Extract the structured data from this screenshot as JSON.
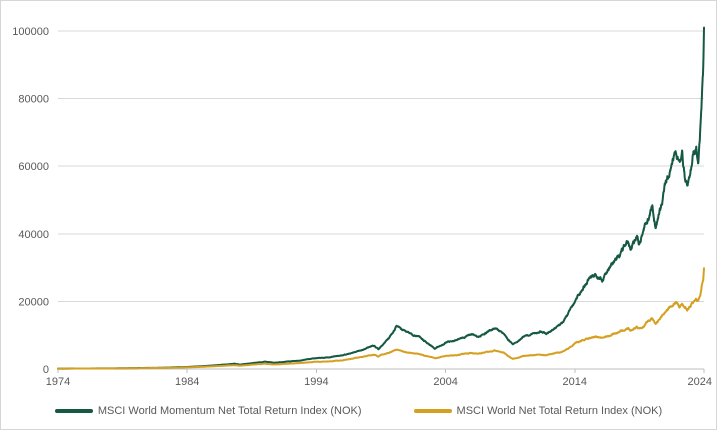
{
  "chart_data": {
    "type": "line",
    "title": "",
    "xlabel": "",
    "ylabel": "",
    "x_range": [
      1974,
      2024
    ],
    "y_range": [
      0,
      100000
    ],
    "x_ticks": [
      "1974",
      "1984",
      "1994",
      "2004",
      "2014",
      "2024"
    ],
    "x_tick_values": [
      1974,
      1984,
      1994,
      2004,
      2014,
      2024
    ],
    "y_ticks": [
      "0",
      "20000",
      "40000",
      "60000",
      "80000",
      "100000"
    ],
    "y_tick_values": [
      0,
      20000,
      40000,
      60000,
      80000,
      100000
    ],
    "grid": "horizontal",
    "legend_position": "bottom-center",
    "colors": {
      "background": "#ffffff",
      "border": "#d6d6d6",
      "grid": "#d9d9d9",
      "axis": "#bfbfbf",
      "labels": "#595959",
      "momentum_line": "#155843",
      "world_line": "#D5A021"
    },
    "series": [
      {
        "name": "MSCI World Momentum Net Total Return Index (NOK)",
        "color": "#155843",
        "points": [
          [
            1974,
            100
          ],
          [
            1975,
            135
          ],
          [
            1976,
            160
          ],
          [
            1977,
            170
          ],
          [
            1978,
            185
          ],
          [
            1979,
            220
          ],
          [
            1980,
            270
          ],
          [
            1981,
            330
          ],
          [
            1982,
            360
          ],
          [
            1983,
            500
          ],
          [
            1984,
            600
          ],
          [
            1985,
            780
          ],
          [
            1986,
            1050
          ],
          [
            1987.7,
            1550
          ],
          [
            1988.1,
            1300
          ],
          [
            1989,
            1750
          ],
          [
            1990,
            2150
          ],
          [
            1990.7,
            1850
          ],
          [
            1992,
            2250
          ],
          [
            1993,
            2650
          ],
          [
            1994,
            3250
          ],
          [
            1995,
            3450
          ],
          [
            1996,
            4050
          ],
          [
            1997,
            5000
          ],
          [
            1998.5,
            7000
          ],
          [
            1998.8,
            5900
          ],
          [
            1999,
            6600
          ],
          [
            2000.2,
            12700
          ],
          [
            2001,
            10800
          ],
          [
            2002,
            9600
          ],
          [
            2003.2,
            6100
          ],
          [
            2004,
            7800
          ],
          [
            2005,
            8800
          ],
          [
            2006,
            10300
          ],
          [
            2006.5,
            9600
          ],
          [
            2007.8,
            12100
          ],
          [
            2008.5,
            10300
          ],
          [
            2009.2,
            7400
          ],
          [
            2010,
            9600
          ],
          [
            2011.3,
            11200
          ],
          [
            2011.8,
            10300
          ],
          [
            2012,
            11000
          ],
          [
            2013,
            13500
          ],
          [
            2014,
            20000
          ],
          [
            2014.5,
            23000
          ],
          [
            2015,
            26000
          ],
          [
            2015.5,
            28000
          ],
          [
            2016.2,
            26500
          ],
          [
            2017,
            31500
          ],
          [
            2017.5,
            34000
          ],
          [
            2018.1,
            38000
          ],
          [
            2018.3,
            35000
          ],
          [
            2018.8,
            39500
          ],
          [
            2019,
            37000
          ],
          [
            2019.5,
            43500
          ],
          [
            2020,
            47500
          ],
          [
            2020.25,
            41500
          ],
          [
            2020.9,
            52000
          ],
          [
            2021,
            54000
          ],
          [
            2021.8,
            66000
          ],
          [
            2022.1,
            60000
          ],
          [
            2022.3,
            63500
          ],
          [
            2022.5,
            56500
          ],
          [
            2022.7,
            54000
          ],
          [
            2023,
            59500
          ],
          [
            2023.2,
            64500
          ],
          [
            2023.4,
            66000
          ],
          [
            2023.55,
            61500
          ],
          [
            2023.7,
            70000
          ],
          [
            2023.8,
            78000
          ],
          [
            2023.88,
            84000
          ],
          [
            2023.94,
            88000
          ],
          [
            2024,
            101000
          ]
        ]
      },
      {
        "name": "MSCI World Net Total Return Index (NOK)",
        "color": "#D5A021",
        "points": [
          [
            1974,
            100
          ],
          [
            1975,
            125
          ],
          [
            1976,
            145
          ],
          [
            1977,
            150
          ],
          [
            1978,
            160
          ],
          [
            1979,
            185
          ],
          [
            1980,
            225
          ],
          [
            1981,
            270
          ],
          [
            1982,
            300
          ],
          [
            1983,
            400
          ],
          [
            1984,
            490
          ],
          [
            1985,
            620
          ],
          [
            1986,
            820
          ],
          [
            1987.7,
            1150
          ],
          [
            1988.1,
            980
          ],
          [
            1989,
            1300
          ],
          [
            1990,
            1550
          ],
          [
            1990.7,
            1350
          ],
          [
            1992,
            1600
          ],
          [
            1993,
            1850
          ],
          [
            1994,
            2150
          ],
          [
            1995,
            2250
          ],
          [
            1996,
            2600
          ],
          [
            1997,
            3200
          ],
          [
            1998.5,
            4300
          ],
          [
            1998.8,
            3700
          ],
          [
            1999,
            4100
          ],
          [
            2000.2,
            5600
          ],
          [
            2001,
            4900
          ],
          [
            2002,
            4400
          ],
          [
            2003.2,
            3200
          ],
          [
            2004,
            3900
          ],
          [
            2005,
            4200
          ],
          [
            2006,
            4800
          ],
          [
            2006.5,
            4500
          ],
          [
            2007.8,
            5400
          ],
          [
            2008.5,
            4800
          ],
          [
            2009.2,
            3000
          ],
          [
            2010,
            3800
          ],
          [
            2011.3,
            4300
          ],
          [
            2011.8,
            4000
          ],
          [
            2012,
            4300
          ],
          [
            2013,
            5100
          ],
          [
            2014,
            7500
          ],
          [
            2014.5,
            8300
          ],
          [
            2015,
            9000
          ],
          [
            2015.5,
            9500
          ],
          [
            2016.2,
            9000
          ],
          [
            2017,
            10500
          ],
          [
            2017.5,
            11200
          ],
          [
            2018.1,
            12000
          ],
          [
            2018.3,
            11400
          ],
          [
            2018.8,
            12500
          ],
          [
            2019,
            11800
          ],
          [
            2019.5,
            13500
          ],
          [
            2020,
            14800
          ],
          [
            2020.25,
            13200
          ],
          [
            2020.9,
            16500
          ],
          [
            2021,
            17000
          ],
          [
            2021.8,
            19500
          ],
          [
            2022.1,
            18500
          ],
          [
            2022.3,
            19300
          ],
          [
            2022.5,
            18000
          ],
          [
            2022.7,
            17700
          ],
          [
            2023,
            19000
          ],
          [
            2023.2,
            20000
          ],
          [
            2023.4,
            20500
          ],
          [
            2023.55,
            20000
          ],
          [
            2023.7,
            21500
          ],
          [
            2023.8,
            23500
          ],
          [
            2023.88,
            25500
          ],
          [
            2023.94,
            26500
          ],
          [
            2024,
            29800
          ]
        ]
      }
    ]
  }
}
